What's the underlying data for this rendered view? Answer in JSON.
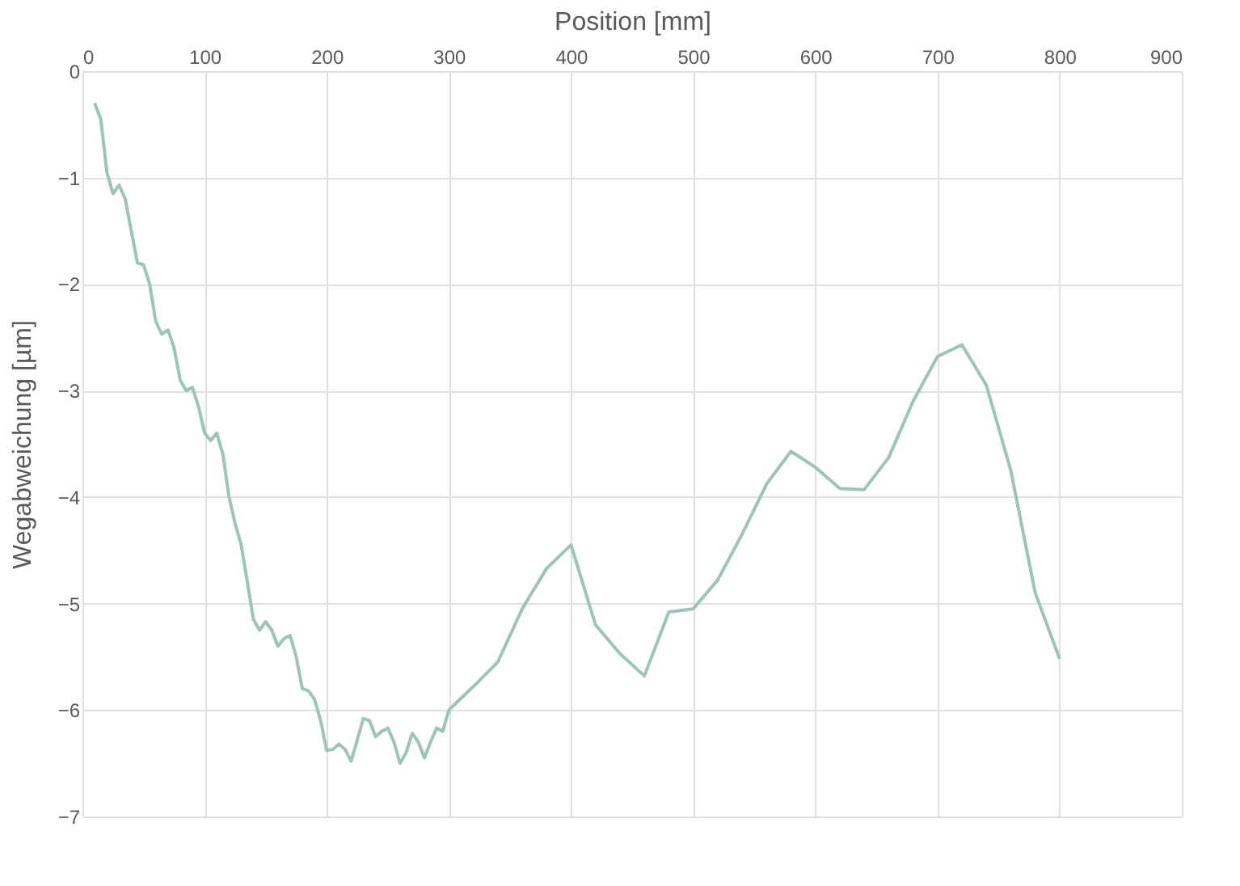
{
  "chart_data": {
    "type": "line",
    "xlabel": "Position [mm]",
    "ylabel": "Wegabweichung [µm]",
    "x": [
      10,
      15,
      20,
      25,
      30,
      35,
      40,
      45,
      50,
      55,
      60,
      65,
      70,
      75,
      80,
      85,
      90,
      95,
      100,
      105,
      110,
      115,
      120,
      125,
      130,
      135,
      140,
      145,
      150,
      155,
      160,
      165,
      170,
      175,
      180,
      185,
      190,
      195,
      200,
      205,
      210,
      215,
      220,
      225,
      230,
      235,
      240,
      245,
      250,
      255,
      260,
      265,
      270,
      275,
      280,
      285,
      290,
      295,
      300,
      320,
      340,
      360,
      380,
      400,
      420,
      440,
      460,
      480,
      500,
      520,
      540,
      560,
      580,
      600,
      620,
      640,
      660,
      680,
      700,
      720,
      740,
      760,
      780,
      800
    ],
    "series": [
      {
        "color": "#9cc5b3",
        "values": [
          -0.3,
          -0.45,
          -0.95,
          -1.15,
          -1.07,
          -1.2,
          -1.5,
          -1.8,
          -1.82,
          -2.0,
          -2.35,
          -2.47,
          -2.43,
          -2.6,
          -2.9,
          -3.0,
          -2.97,
          -3.15,
          -3.4,
          -3.47,
          -3.4,
          -3.6,
          -4.0,
          -4.25,
          -4.45,
          -4.8,
          -5.15,
          -5.25,
          -5.17,
          -5.25,
          -5.4,
          -5.33,
          -5.3,
          -5.5,
          -5.8,
          -5.82,
          -5.9,
          -6.1,
          -6.38,
          -6.37,
          -6.32,
          -6.37,
          -6.48,
          -6.28,
          -6.08,
          -6.1,
          -6.25,
          -6.2,
          -6.17,
          -6.3,
          -6.5,
          -6.4,
          -6.22,
          -6.3,
          -6.45,
          -6.3,
          -6.17,
          -6.2,
          -6.0,
          -5.78,
          -5.55,
          -5.05,
          -4.67,
          -4.45,
          -5.2,
          -5.47,
          -5.68,
          -5.08,
          -5.05,
          -4.78,
          -4.35,
          -3.88,
          -3.57,
          -3.72,
          -3.92,
          -3.93,
          -3.63,
          -3.1,
          -2.68,
          -2.57,
          -2.95,
          -3.75,
          -4.9,
          -5.52
        ]
      }
    ],
    "xlim": [
      0,
      900
    ],
    "xticks": [
      0,
      100,
      200,
      300,
      400,
      500,
      600,
      700,
      800,
      900
    ],
    "ylim": [
      -7,
      0
    ],
    "yticks": [
      0,
      -1,
      -2,
      -3,
      -4,
      -5,
      -6,
      -7
    ],
    "grid": true,
    "legend": false,
    "marker": "none",
    "line_style": "solid"
  }
}
